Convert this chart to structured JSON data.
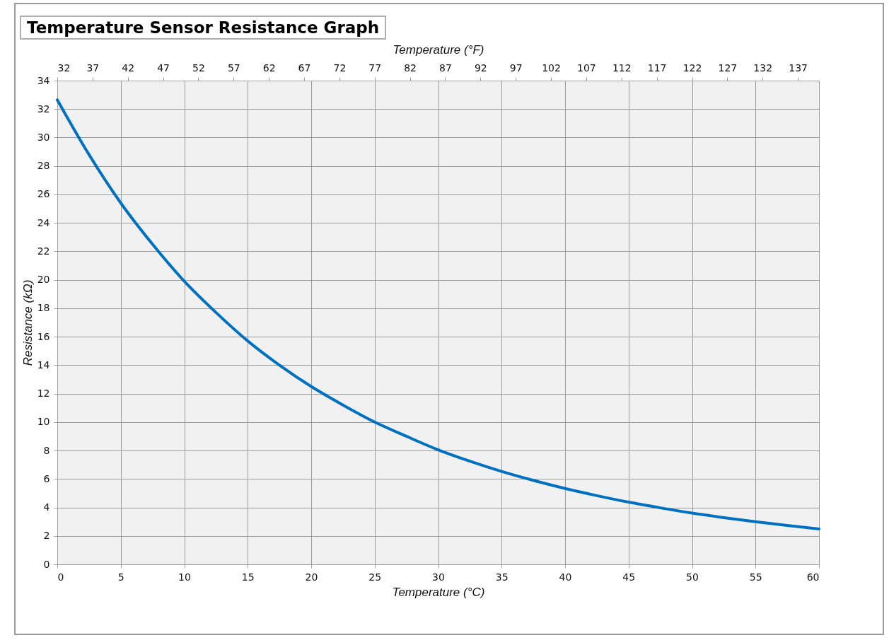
{
  "chart_data": {
    "type": "line",
    "title": "Temperature Sensor Resistance Graph",
    "xlabel": "Temperature (°C)",
    "ylabel": "Resistance (kΩ)",
    "x2label": "Temperature (°F)",
    "x": [
      0,
      2.5,
      5,
      7.5,
      10,
      12.5,
      15,
      17.5,
      20,
      22.5,
      25,
      27.5,
      30,
      32.5,
      35,
      37.5,
      40,
      42.5,
      45,
      47.5,
      50,
      52.5,
      55,
      57.5,
      60
    ],
    "series": [
      {
        "color": "#0070c0",
        "values": [
          32.65,
          28.8,
          25.4,
          22.5,
          19.9,
          17.7,
          15.7,
          14.0,
          12.5,
          11.2,
          10.0,
          9.0,
          8.05,
          7.25,
          6.53,
          5.9,
          5.33,
          4.83,
          4.37,
          3.97,
          3.6,
          3.28,
          2.99,
          2.73,
          2.49
        ]
      }
    ],
    "xlim": [
      0,
      60
    ],
    "xticks": [
      0,
      5,
      10,
      15,
      20,
      25,
      30,
      35,
      40,
      45,
      50,
      55,
      60
    ],
    "x2lim": [
      32,
      140
    ],
    "x2ticks": [
      32,
      37,
      42,
      47,
      52,
      57,
      62,
      67,
      72,
      77,
      82,
      87,
      92,
      97,
      102,
      107,
      112,
      117,
      122,
      127,
      132,
      137
    ],
    "ylim": [
      0,
      34
    ],
    "yticks": [
      0,
      2,
      4,
      6,
      8,
      10,
      12,
      14,
      16,
      18,
      20,
      22,
      24,
      26,
      28,
      30,
      32,
      34
    ],
    "grid": true,
    "marker": "none",
    "line_style": "solid"
  }
}
